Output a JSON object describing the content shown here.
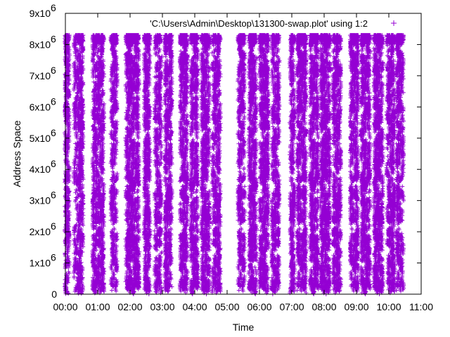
{
  "chart_data": {
    "type": "scatter",
    "marker": "+",
    "xlabel": "Time",
    "ylabel": "Address Space",
    "x_ticks": [
      "00:00",
      "01:00",
      "02:00",
      "03:00",
      "04:00",
      "05:00",
      "06:00",
      "07:00",
      "08:00",
      "09:00",
      "10:00",
      "11:00"
    ],
    "y_ticks": [
      "0",
      "1x10",
      "2x10",
      "3x10",
      "4x10",
      "5x10",
      "6x10",
      "7x10",
      "8x10",
      "9x10"
    ],
    "y_tick_exponent": "6",
    "xlim_hours": [
      0,
      11
    ],
    "ylim": [
      0,
      9000000
    ],
    "grid": false,
    "legend_position": "top-right",
    "series": [
      {
        "name": "'C:\\Users\\Admin\\Desktop\\131300-swap.plot' using 1:2",
        "color": "#9400D3",
        "activity_bands_hours": [
          [
            0.0,
            0.12
          ],
          [
            0.28,
            0.55
          ],
          [
            0.85,
            1.2
          ],
          [
            1.42,
            1.6
          ],
          [
            1.88,
            2.28
          ],
          [
            2.45,
            2.62
          ],
          [
            2.78,
            2.98
          ],
          [
            3.08,
            3.3
          ],
          [
            3.55,
            3.78
          ],
          [
            3.88,
            4.1
          ],
          [
            4.22,
            4.45
          ],
          [
            4.55,
            4.8
          ],
          [
            5.35,
            5.55
          ],
          [
            5.68,
            5.92
          ],
          [
            6.02,
            6.28
          ],
          [
            6.4,
            6.62
          ],
          [
            6.95,
            7.1
          ],
          [
            7.18,
            7.45
          ],
          [
            7.58,
            7.82
          ],
          [
            7.9,
            8.2
          ],
          [
            8.28,
            8.52
          ],
          [
            8.82,
            9.05
          ],
          [
            9.15,
            9.42
          ],
          [
            9.55,
            9.82
          ],
          [
            9.95,
            10.2
          ],
          [
            10.25,
            10.45
          ]
        ]
      }
    ]
  }
}
